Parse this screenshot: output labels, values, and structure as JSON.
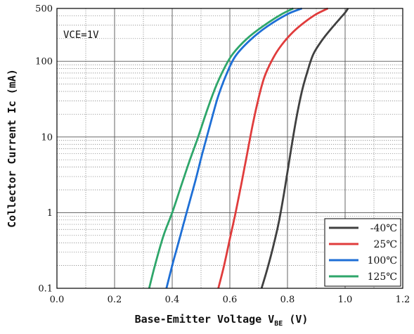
{
  "chart_data": {
    "type": "line",
    "x_axis": {
      "label_main": "Base-Emitter Voltage V",
      "label_sub": "BE",
      "label_unit": " (V)",
      "range": [
        0.0,
        1.2
      ],
      "ticks": [
        0.0,
        0.2,
        0.4,
        0.6,
        0.8,
        1.0,
        1.2
      ],
      "tick_labels": [
        "0.0",
        "0.2",
        "0.4",
        "0.6",
        "0.8",
        "1.0",
        "1.2"
      ]
    },
    "y_axis": {
      "label": "Collector  Current Ic (mA)",
      "scale": "log",
      "range": [
        0.1,
        500
      ],
      "ticks": [
        0.1,
        1,
        10,
        100,
        500
      ],
      "tick_labels": [
        "0.1",
        "1",
        "10",
        "100",
        "500"
      ]
    },
    "grid": true,
    "annotation": "VCE=1V",
    "legend_position": "bottom-right",
    "series": [
      {
        "name": "-40℃",
        "color": "#404040",
        "points": [
          [
            0.71,
            0.1
          ],
          [
            0.73,
            0.18
          ],
          [
            0.75,
            0.35
          ],
          [
            0.77,
            0.75
          ],
          [
            0.79,
            2.0
          ],
          [
            0.81,
            6.0
          ],
          [
            0.83,
            17
          ],
          [
            0.85,
            40
          ],
          [
            0.87,
            75
          ],
          [
            0.89,
            125
          ],
          [
            0.92,
            190
          ],
          [
            0.95,
            265
          ],
          [
            0.98,
            360
          ],
          [
            1.0,
            440
          ],
          [
            1.01,
            500
          ]
        ]
      },
      {
        "name": "25℃",
        "color": "#e03c3c",
        "points": [
          [
            0.56,
            0.1
          ],
          [
            0.58,
            0.2
          ],
          [
            0.6,
            0.45
          ],
          [
            0.62,
            1.0
          ],
          [
            0.64,
            2.4
          ],
          [
            0.66,
            6.0
          ],
          [
            0.68,
            15
          ],
          [
            0.7,
            33
          ],
          [
            0.72,
            62
          ],
          [
            0.75,
            110
          ],
          [
            0.78,
            165
          ],
          [
            0.82,
            245
          ],
          [
            0.86,
            330
          ],
          [
            0.9,
            420
          ],
          [
            0.94,
            500
          ]
        ]
      },
      {
        "name": "100℃",
        "color": "#1e6fd6",
        "points": [
          [
            0.38,
            0.1
          ],
          [
            0.4,
            0.2
          ],
          [
            0.42,
            0.38
          ],
          [
            0.45,
            1.0
          ],
          [
            0.48,
            2.6
          ],
          [
            0.5,
            5.2
          ],
          [
            0.52,
            10
          ],
          [
            0.54,
            19
          ],
          [
            0.56,
            35
          ],
          [
            0.59,
            70
          ],
          [
            0.62,
            118
          ],
          [
            0.67,
            190
          ],
          [
            0.73,
            290
          ],
          [
            0.8,
            420
          ],
          [
            0.85,
            500
          ]
        ]
      },
      {
        "name": "125℃",
        "color": "#2ea66a",
        "points": [
          [
            0.32,
            0.1
          ],
          [
            0.34,
            0.2
          ],
          [
            0.37,
            0.5
          ],
          [
            0.4,
            1.0
          ],
          [
            0.43,
            2.2
          ],
          [
            0.46,
            4.8
          ],
          [
            0.49,
            10
          ],
          [
            0.52,
            22
          ],
          [
            0.55,
            45
          ],
          [
            0.58,
            80
          ],
          [
            0.61,
            125
          ],
          [
            0.66,
            200
          ],
          [
            0.72,
            300
          ],
          [
            0.78,
            420
          ],
          [
            0.82,
            500
          ]
        ]
      }
    ]
  }
}
